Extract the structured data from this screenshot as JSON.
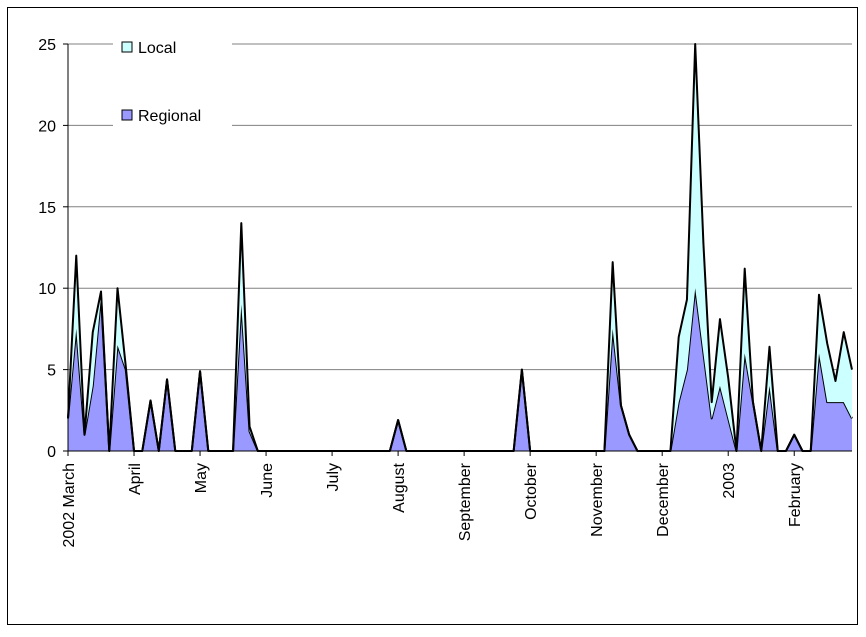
{
  "chart_data": {
    "type": "stacked-area",
    "categories": [
      "2002 March",
      null,
      null,
      null,
      null,
      null,
      null,
      null,
      "April",
      null,
      null,
      null,
      null,
      null,
      null,
      null,
      "May",
      null,
      null,
      null,
      null,
      null,
      null,
      null,
      "June",
      null,
      null,
      null,
      null,
      null,
      null,
      null,
      "July",
      null,
      null,
      null,
      null,
      null,
      null,
      null,
      "August",
      null,
      null,
      null,
      null,
      null,
      null,
      null,
      "September",
      null,
      null,
      null,
      null,
      null,
      null,
      null,
      "October",
      null,
      null,
      null,
      null,
      null,
      null,
      null,
      "November",
      null,
      null,
      null,
      null,
      null,
      null,
      null,
      "December",
      null,
      null,
      null,
      null,
      null,
      null,
      null,
      "2003",
      null,
      null,
      null,
      null,
      null,
      null,
      null,
      "February",
      null,
      null,
      null,
      null,
      null,
      null,
      null
    ],
    "series": [
      {
        "name": "Regional",
        "color": "#9999ff",
        "values": [
          2,
          7.5,
          1,
          4,
          9.5,
          0,
          6.5,
          5,
          0,
          0,
          3.1,
          0,
          4.4,
          0,
          0,
          0,
          4.9,
          0,
          0,
          0,
          0,
          9,
          1.2,
          0,
          0,
          0,
          0,
          0,
          0,
          0,
          0,
          0,
          0,
          0,
          0,
          0,
          0,
          0,
          0,
          0,
          1.9,
          0,
          0,
          0,
          0,
          0,
          0,
          0,
          0,
          0,
          0,
          0,
          0,
          0,
          0,
          5,
          0,
          0,
          0,
          0,
          0,
          0,
          0,
          0,
          0,
          0,
          7.5,
          2.8,
          1,
          0,
          0,
          0,
          0,
          0,
          3,
          5,
          10,
          6,
          2,
          4,
          2,
          0,
          6,
          3,
          0,
          4,
          0,
          0,
          1,
          0,
          0,
          6,
          3,
          3,
          3,
          2
        ]
      },
      {
        "name": "Local",
        "color": "#ccffff",
        "values": [
          0,
          4.5,
          0,
          3.3,
          0.3,
          0,
          3.5,
          0.2,
          0,
          0,
          0,
          0,
          0,
          0,
          0,
          0,
          0,
          0,
          0,
          0,
          0,
          5,
          0.3,
          0,
          0,
          0,
          0,
          0,
          0,
          0,
          0,
          0,
          0,
          0,
          0,
          0,
          0,
          0,
          0,
          0,
          0,
          0,
          0,
          0,
          0,
          0,
          0,
          0,
          0,
          0,
          0,
          0,
          0,
          0,
          0,
          0,
          0,
          0,
          0,
          0,
          0,
          0,
          0,
          0,
          0,
          0,
          4.1,
          0,
          0,
          0,
          0,
          0,
          0,
          0,
          4,
          4.3,
          15,
          6.7,
          1,
          4.1,
          2.5,
          0,
          5.2,
          0,
          0,
          2.4,
          0,
          0,
          0,
          0,
          0,
          3.6,
          3.6,
          1.3,
          4.3,
          3
        ]
      }
    ],
    "ylim": [
      0,
      25
    ],
    "yticks": [
      0,
      5,
      10,
      15,
      20,
      25
    ],
    "grid": true
  }
}
